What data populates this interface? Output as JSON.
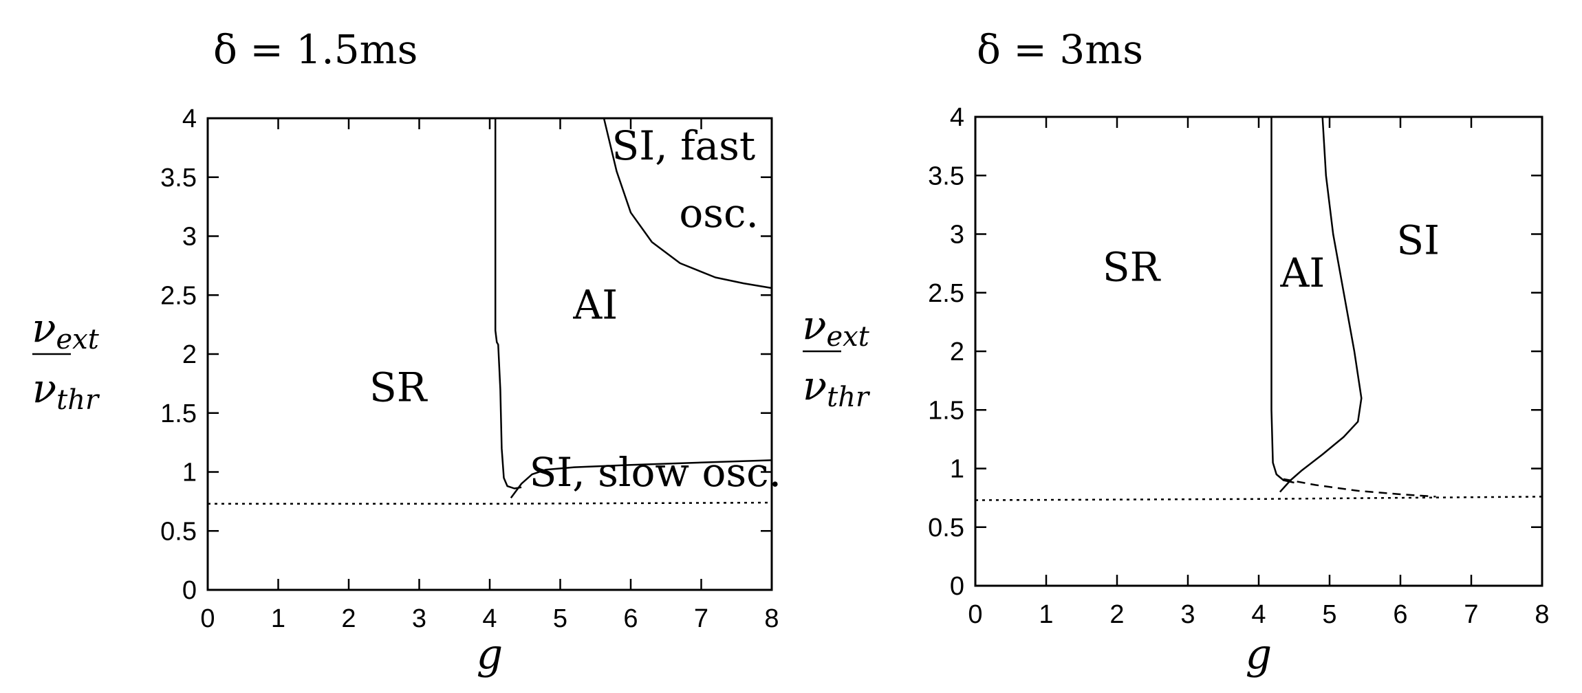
{
  "chart_data": [
    {
      "type": "line",
      "title": "δ = 1.5ms",
      "xlabel": "g",
      "ylabel_num": "ν",
      "ylabel_num_sub": "ext",
      "ylabel_den": "ν",
      "ylabel_den_sub": "thr",
      "xlim": [
        0,
        8
      ],
      "ylim": [
        0,
        4
      ],
      "xticks": [
        0,
        1,
        2,
        3,
        4,
        5,
        6,
        7,
        8
      ],
      "yticks": [
        0,
        0.5,
        1,
        1.5,
        2,
        2.5,
        3,
        3.5,
        4
      ],
      "xtick_labels": [
        "0",
        "1",
        "2",
        "3",
        "4",
        "5",
        "6",
        "7",
        "8"
      ],
      "ytick_labels": [
        "0",
        "0.5",
        "1",
        "1.5",
        "2",
        "2.5",
        "3",
        "3.5",
        "4"
      ],
      "grid": false,
      "regions": [
        {
          "label": "SR",
          "x": 2.7,
          "y": 1.6
        },
        {
          "label": "AI",
          "x": 5.5,
          "y": 2.3
        },
        {
          "label": "SI, fast",
          "x": 6.75,
          "y": 3.65
        },
        {
          "label": "osc.",
          "x": 7.25,
          "y": 3.08
        },
        {
          "label": "SI, slow osc.",
          "x": 6.35,
          "y": 0.88
        }
      ],
      "curves": [
        {
          "style": "solid",
          "points": [
            [
              4.08,
              4.0
            ],
            [
              4.08,
              3.0
            ],
            [
              4.08,
              2.2
            ],
            [
              4.1,
              2.1
            ],
            [
              4.12,
              2.08
            ],
            [
              4.15,
              1.7
            ],
            [
              4.17,
              1.2
            ],
            [
              4.2,
              0.95
            ],
            [
              4.25,
              0.88
            ],
            [
              4.35,
              0.86
            ],
            [
              4.45,
              0.87
            ]
          ]
        },
        {
          "style": "solid",
          "points": [
            [
              4.3,
              0.78
            ],
            [
              4.45,
              0.9
            ],
            [
              4.6,
              0.98
            ],
            [
              4.8,
              1.02
            ],
            [
              5.2,
              1.04
            ],
            [
              6.0,
              1.06
            ],
            [
              7.0,
              1.08
            ],
            [
              8.0,
              1.1
            ]
          ]
        },
        {
          "style": "solid",
          "points": [
            [
              5.62,
              4.0
            ],
            [
              5.8,
              3.55
            ],
            [
              6.0,
              3.2
            ],
            [
              6.3,
              2.95
            ],
            [
              6.7,
              2.77
            ],
            [
              7.2,
              2.65
            ],
            [
              7.6,
              2.6
            ],
            [
              8.0,
              2.56
            ]
          ]
        },
        {
          "style": "dotted",
          "points": [
            [
              0,
              0.73
            ],
            [
              4.0,
              0.73
            ],
            [
              8.0,
              0.74
            ]
          ]
        }
      ]
    },
    {
      "type": "line",
      "title": "δ = 3ms",
      "xlabel": "g",
      "ylabel_num": "ν",
      "ylabel_num_sub": "ext",
      "ylabel_den": "ν",
      "ylabel_den_sub": "thr",
      "xlim": [
        0,
        8
      ],
      "ylim": [
        0,
        4
      ],
      "xticks": [
        0,
        1,
        2,
        3,
        4,
        5,
        6,
        7,
        8
      ],
      "yticks": [
        0,
        0.5,
        1,
        1.5,
        2,
        2.5,
        3,
        3.5,
        4
      ],
      "xtick_labels": [
        "0",
        "1",
        "2",
        "3",
        "4",
        "5",
        "6",
        "7",
        "8"
      ],
      "ytick_labels": [
        "0",
        "0.5",
        "1",
        "1.5",
        "2",
        "2.5",
        "3",
        "3.5",
        "4"
      ],
      "grid": false,
      "regions": [
        {
          "label": "SR",
          "x": 2.2,
          "y": 2.6
        },
        {
          "label": "AI",
          "x": 4.62,
          "y": 2.55
        },
        {
          "label": "SI",
          "x": 6.25,
          "y": 2.83
        }
      ],
      "curves": [
        {
          "style": "solid",
          "points": [
            [
              4.18,
              4.0
            ],
            [
              4.18,
              3.0
            ],
            [
              4.18,
              2.0
            ],
            [
              4.18,
              1.5
            ],
            [
              4.2,
              1.05
            ],
            [
              4.25,
              0.95
            ],
            [
              4.35,
              0.9
            ],
            [
              4.5,
              0.88
            ]
          ]
        },
        {
          "style": "solid",
          "points": [
            [
              4.9,
              4.0
            ],
            [
              4.95,
              3.5
            ],
            [
              5.05,
              3.0
            ],
            [
              5.2,
              2.5
            ],
            [
              5.35,
              2.0
            ],
            [
              5.45,
              1.6
            ],
            [
              5.4,
              1.4
            ],
            [
              5.2,
              1.27
            ],
            [
              4.9,
              1.12
            ],
            [
              4.6,
              0.98
            ],
            [
              4.45,
              0.9
            ],
            [
              4.3,
              0.8
            ]
          ]
        },
        {
          "style": "dashed",
          "points": [
            [
              4.35,
              0.91
            ],
            [
              4.8,
              0.86
            ],
            [
              5.4,
              0.81
            ],
            [
              6.0,
              0.78
            ],
            [
              6.5,
              0.76
            ]
          ]
        },
        {
          "style": "dotted",
          "points": [
            [
              0,
              0.73
            ],
            [
              4.0,
              0.74
            ],
            [
              8.0,
              0.76
            ]
          ]
        }
      ]
    }
  ]
}
